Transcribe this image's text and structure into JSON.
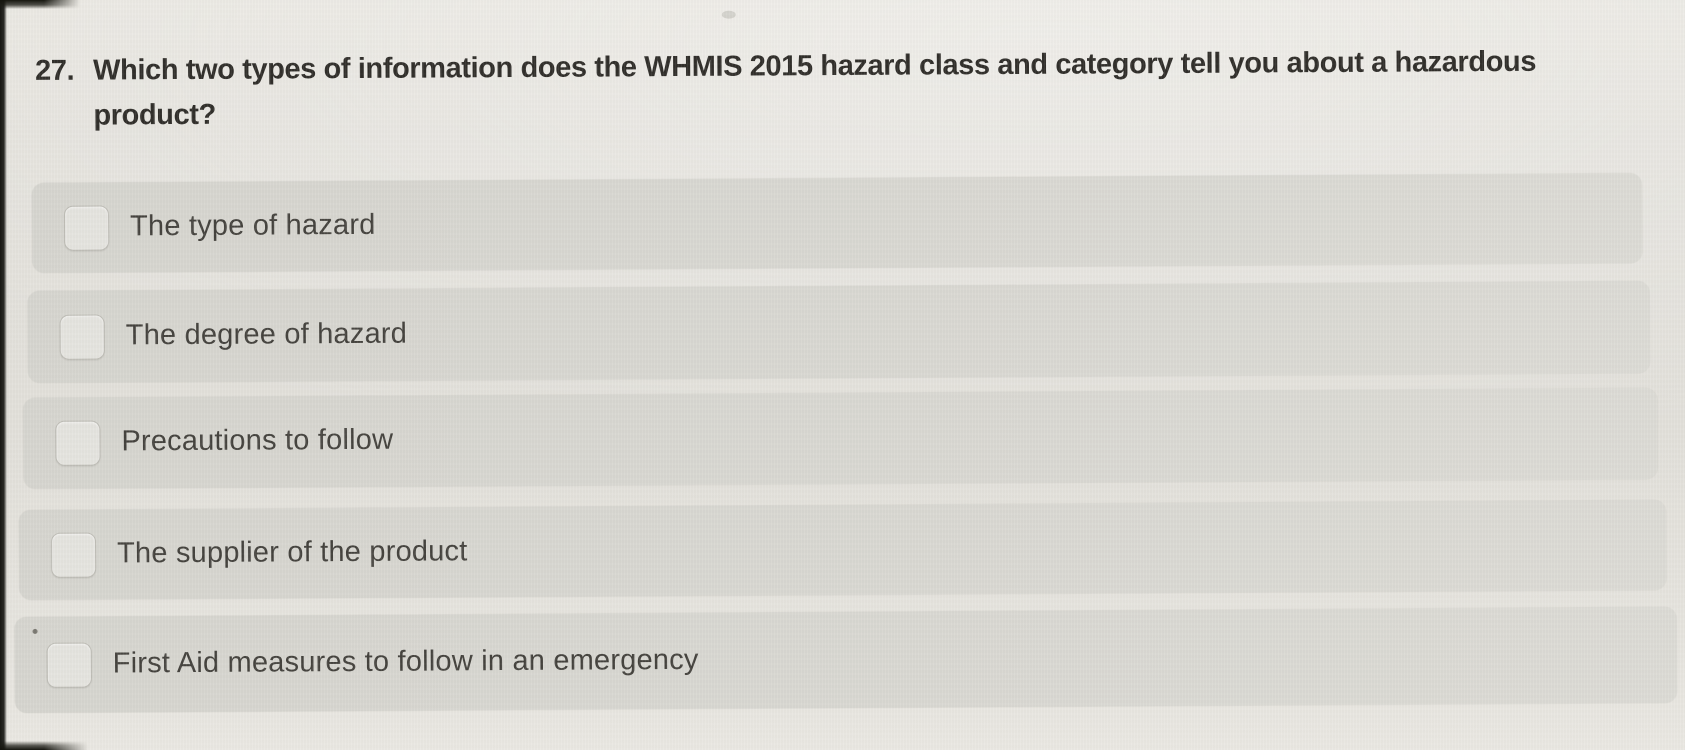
{
  "question": {
    "number": "27.",
    "line1": "Which two types of information does the WHMIS 2015 hazard class and category tell you about a hazardous",
    "line2": "product?"
  },
  "options": [
    {
      "label": "The type of hazard",
      "checked": false
    },
    {
      "label": "The degree of hazard",
      "checked": false
    },
    {
      "label": "Precautions to follow",
      "checked": false
    },
    {
      "label": "The supplier of the product",
      "checked": false
    },
    {
      "label": "First Aid measures to follow in an emergency",
      "checked": false
    }
  ],
  "colors": {
    "page_bg": "#e5e3dd",
    "row_bg": "#d8d7d1",
    "checkbox_bg": "#e5e4df",
    "question_text": "#312f2b",
    "option_text": "#45433e"
  }
}
